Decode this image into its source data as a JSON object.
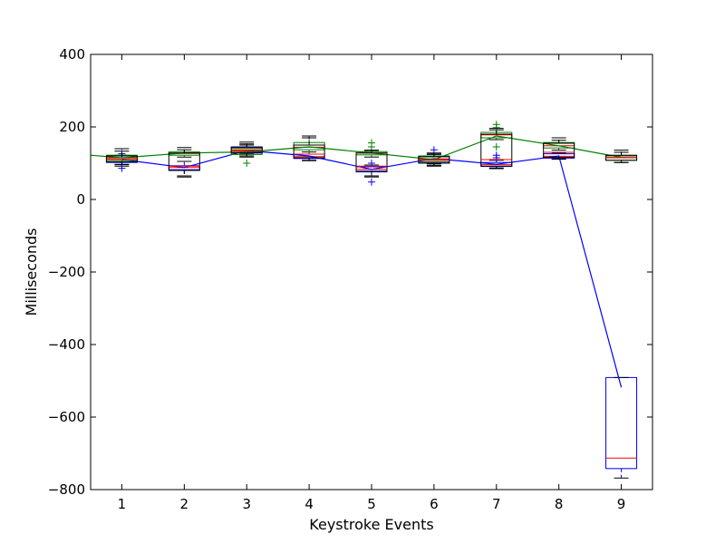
{
  "chart_data": {
    "type": "box",
    "xlabel": "Keystroke Events",
    "ylabel": "Milliseconds",
    "categories": [
      "1",
      "2",
      "3",
      "4",
      "5",
      "6",
      "7",
      "8",
      "9"
    ],
    "xlim": [
      0.5,
      9.5
    ],
    "ylim": [
      -800,
      400
    ],
    "yticks": [
      400,
      200,
      0,
      -200,
      -400,
      -600,
      -800
    ],
    "yticklabels": [
      "400",
      "200",
      "0",
      "−200",
      "−400",
      "−600",
      "−800"
    ],
    "grid": false,
    "colors": {
      "blue": "#0000ff",
      "green": "#008000",
      "red": "#ff0000",
      "black": "#000000"
    },
    "series": [
      {
        "color": "#0000ff",
        "mean_line": [
          110,
          88,
          135,
          120,
          83,
          113,
          97,
          120,
          -518
        ],
        "boxes": [
          {
            "whislo": 92,
            "q1": 102,
            "med": 108,
            "q3": 115,
            "whishi": 122,
            "fliers": [
              86,
              126
            ]
          },
          {
            "whislo": 65,
            "q1": 82,
            "med": 88,
            "q3": 93,
            "whishi": 105,
            "fliers": []
          },
          {
            "whislo": 125,
            "q1": 130,
            "med": 137,
            "q3": 143,
            "whishi": 150,
            "fliers": []
          },
          {
            "whislo": 108,
            "q1": 113,
            "med": 118,
            "q3": 125,
            "whishi": 131,
            "fliers": []
          },
          {
            "whislo": 65,
            "q1": 76,
            "med": 83,
            "q3": 90,
            "whishi": 95,
            "fliers": [
              48,
              100
            ]
          },
          {
            "whislo": 98,
            "q1": 103,
            "med": 110,
            "q3": 118,
            "whishi": 128,
            "fliers": [
              137
            ]
          },
          {
            "whislo": 87,
            "q1": 91,
            "med": 96,
            "q3": 102,
            "whishi": 108,
            "fliers": [
              115,
              122
            ]
          },
          {
            "whislo": 112,
            "q1": 114,
            "med": 119,
            "q3": 126,
            "whishi": 128,
            "fliers": []
          },
          {
            "whislo": -768,
            "q1": -742,
            "med": -713,
            "q3": -491,
            "whishi": -491,
            "fliers": []
          }
        ]
      },
      {
        "color": "#008000",
        "mean_line": [
          122,
          115,
          128,
          131,
          145,
          128,
          110,
          175,
          148,
          116
        ],
        "mean_line_x": [
          0.5,
          1,
          2,
          3,
          4,
          5,
          6,
          7,
          8,
          9
        ],
        "boxes": [
          {
            "whislo": 97,
            "q1": 108,
            "med": 115,
            "q3": 122,
            "whishi": 133,
            "fliers": []
          },
          {
            "whislo": 117,
            "q1": 122,
            "med": 127,
            "q3": 131,
            "whishi": 137,
            "fliers": []
          },
          {
            "whislo": 117,
            "q1": 124,
            "med": 133,
            "q3": 141,
            "whishi": 153,
            "fliers": [
              100
            ]
          },
          {
            "whislo": 125,
            "q1": 137,
            "med": 144,
            "q3": 157,
            "whishi": 170,
            "fliers": []
          },
          {
            "whislo": 117,
            "q1": 123,
            "med": 128,
            "q3": 132,
            "whishi": 135,
            "fliers": [
              145,
              156
            ]
          },
          {
            "whislo": 94,
            "q1": 104,
            "med": 112,
            "q3": 120,
            "whishi": 124,
            "fliers": []
          },
          {
            "whislo": 165,
            "q1": 170,
            "med": 178,
            "q3": 185,
            "whishi": 192,
            "fliers": [
              145,
              198,
              207
            ]
          },
          {
            "whislo": 136,
            "q1": 142,
            "med": 148,
            "q3": 157,
            "whishi": 163,
            "fliers": []
          },
          {
            "whislo": 102,
            "q1": 108,
            "med": 115,
            "q3": 120,
            "whishi": 130,
            "fliers": []
          }
        ]
      },
      {
        "color": "#000000",
        "boxes": [
          {
            "whislo": 96,
            "q1": 104,
            "med": 112,
            "q3": 120,
            "whishi": 140,
            "fliers": []
          },
          {
            "whislo": 62,
            "q1": 80,
            "med": 92,
            "q3": 128,
            "whishi": 143,
            "fliers": []
          },
          {
            "whislo": 120,
            "q1": 128,
            "med": 136,
            "q3": 145,
            "whishi": 158,
            "fliers": []
          },
          {
            "whislo": 107,
            "q1": 115,
            "med": 125,
            "q3": 150,
            "whishi": 175,
            "fliers": []
          },
          {
            "whislo": 62,
            "q1": 78,
            "med": 92,
            "q3": 128,
            "whishi": 136,
            "fliers": []
          },
          {
            "whislo": 92,
            "q1": 100,
            "med": 108,
            "q3": 118,
            "whishi": 127,
            "fliers": []
          },
          {
            "whislo": 85,
            "q1": 92,
            "med": 110,
            "q3": 180,
            "whishi": 196,
            "fliers": []
          },
          {
            "whislo": 111,
            "q1": 116,
            "med": 130,
            "q3": 155,
            "whishi": 170,
            "fliers": []
          },
          {
            "whislo": 102,
            "q1": 108,
            "med": 116,
            "q3": 122,
            "whishi": 136,
            "fliers": []
          }
        ]
      }
    ]
  }
}
